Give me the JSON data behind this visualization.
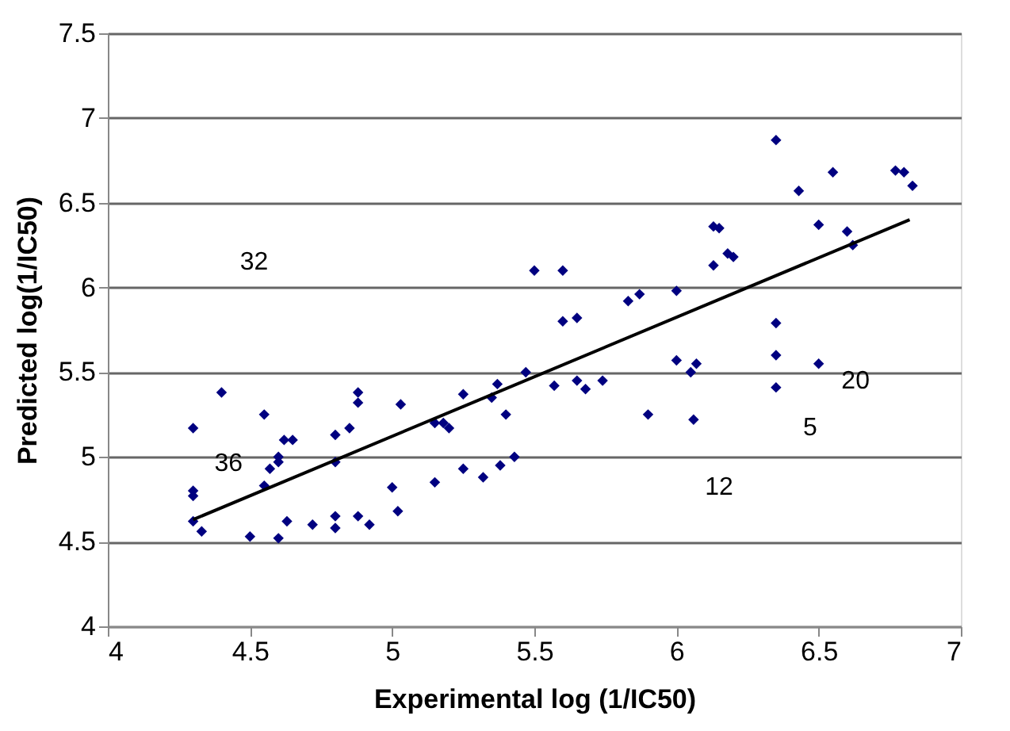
{
  "chart_data": {
    "type": "scatter",
    "xlabel": "Experimental log (1/IC50)",
    "ylabel": "Predicted log(1/IC50)",
    "xlim": [
      4,
      7
    ],
    "xticks": [
      4,
      4.5,
      5,
      5.5,
      6,
      6.5,
      7
    ],
    "ylim": [
      4,
      7.5
    ],
    "yticks": [
      4,
      4.5,
      5,
      5.5,
      6,
      6.5,
      7,
      7.5
    ],
    "grid": "y",
    "series": [
      {
        "color": "#000080",
        "marker": "diamond",
        "x": [
          4.3,
          4.3,
          4.3,
          4.3,
          4.33,
          4.4,
          4.5,
          4.55,
          4.55,
          4.57,
          4.6,
          4.6,
          4.62,
          4.65,
          4.6,
          4.63,
          4.72,
          4.8,
          4.8,
          4.8,
          4.8,
          4.85,
          4.88,
          4.88,
          4.88,
          4.92,
          5.0,
          5.02,
          5.03,
          5.15,
          5.15,
          5.18,
          5.2,
          5.25,
          5.25,
          5.32,
          5.35,
          5.37,
          5.38,
          5.4,
          5.43,
          5.47,
          5.5,
          5.57,
          5.6,
          5.6,
          5.65,
          5.65,
          5.68,
          5.74,
          5.83,
          5.87,
          5.9,
          6.0,
          6.0,
          6.05,
          6.07,
          6.06,
          6.13,
          6.13,
          6.15,
          6.18,
          6.2,
          6.35,
          6.35,
          6.35,
          6.35,
          6.43,
          6.5,
          6.5,
          6.55,
          6.6,
          6.62,
          6.77,
          6.8,
          6.83
        ],
        "values": [
          5.17,
          4.8,
          4.77,
          4.62,
          4.56,
          5.38,
          4.53,
          5.25,
          4.83,
          4.93,
          5.0,
          4.97,
          5.1,
          5.1,
          4.52,
          4.62,
          4.6,
          5.13,
          4.97,
          4.65,
          4.58,
          5.17,
          5.32,
          5.38,
          4.65,
          4.6,
          4.82,
          4.68,
          5.31,
          4.85,
          5.2,
          5.2,
          5.17,
          4.93,
          5.37,
          4.88,
          5.35,
          5.43,
          4.95,
          5.25,
          5.0,
          5.5,
          6.1,
          5.42,
          6.1,
          5.8,
          5.82,
          5.45,
          5.4,
          5.45,
          5.92,
          5.96,
          5.25,
          5.98,
          5.57,
          5.5,
          5.55,
          5.22,
          6.13,
          6.36,
          6.35,
          6.2,
          6.18,
          6.87,
          5.79,
          5.6,
          5.41,
          6.57,
          6.37,
          5.55,
          6.68,
          6.33,
          6.25,
          6.69,
          6.68,
          6.6
        ]
      },
      {
        "type": "line",
        "color": "#000000",
        "x": [
          4.3,
          6.82
        ],
        "values": [
          4.63,
          6.4
        ]
      }
    ],
    "annotations": [
      "32",
      "36",
      "12",
      "5",
      "20"
    ]
  }
}
